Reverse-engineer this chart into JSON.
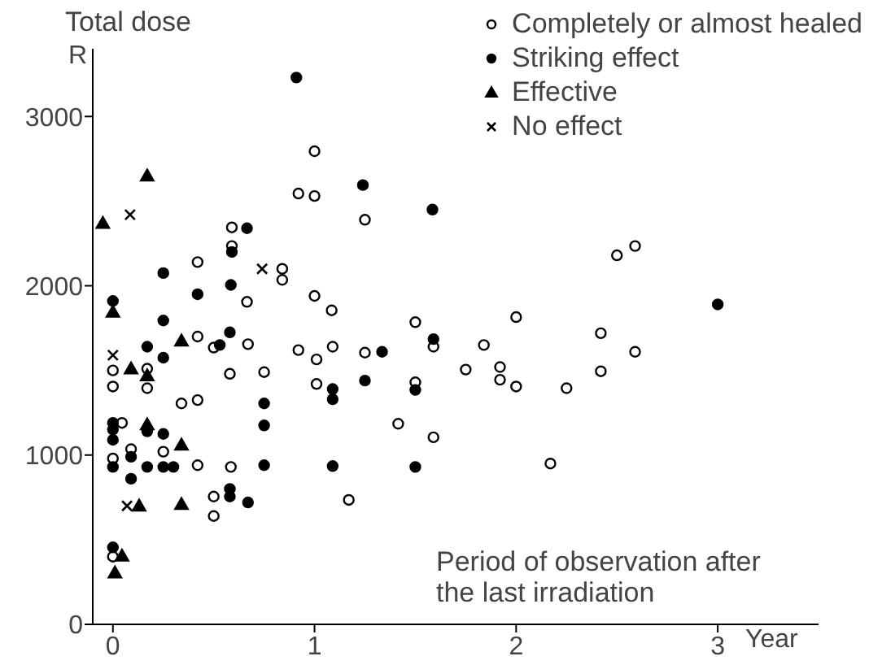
{
  "chart_data": {
    "type": "scatter",
    "ylabel": "Total dose",
    "xlabel": "Period of observation after the last irradiation",
    "annotations": [
      "R",
      "Year"
    ],
    "xlim": [
      -0.1,
      3.5
    ],
    "xticks": [
      0,
      1,
      2,
      3
    ],
    "ylim": [
      0,
      3400
    ],
    "yticks": [
      0,
      1000,
      2000,
      3000
    ],
    "legend": "top right",
    "series": [
      {
        "name": "Completely or almost healed",
        "color": "#ffffff",
        "marker": "circle",
        "x": [
          1.0,
          0.92,
          1.0,
          0.59,
          0.59,
          0.42,
          0.84,
          0.84,
          0.665,
          1.0,
          1.085,
          0.42,
          0.5,
          0.67,
          0.92,
          1.01,
          1.09,
          0.0,
          0.17,
          0.0,
          0.17,
          0.58,
          0.75,
          1.01,
          0.34,
          0.42,
          0.045,
          0.09,
          0.25,
          0.0,
          0.42,
          0.585,
          0.5,
          0.5,
          0.0,
          1.25,
          1.5,
          2.0,
          1.25,
          1.59,
          1.84,
          1.75,
          1.92,
          1.92,
          2.0,
          2.25,
          1.5,
          1.415,
          1.59,
          2.17,
          1.17,
          2.5,
          2.59,
          2.42,
          2.59,
          2.42
        ],
        "values": [
          2795,
          2545,
          2530,
          2345,
          2235,
          2140,
          2100,
          2035,
          1905,
          1940,
          1855,
          1700,
          1635,
          1655,
          1620,
          1565,
          1640,
          1500,
          1510,
          1405,
          1395,
          1480,
          1490,
          1420,
          1305,
          1325,
          1190,
          1035,
          1020,
          980,
          940,
          930,
          755,
          640,
          400,
          2390,
          1785,
          1815,
          1605,
          1640,
          1650,
          1505,
          1520,
          1445,
          1405,
          1395,
          1430,
          1185,
          1105,
          950,
          735,
          2180,
          2235,
          1720,
          1610,
          1495
        ]
      },
      {
        "name": "Striking effect",
        "color": "#000000",
        "marker": "circle",
        "x": [
          0.91,
          0.665,
          0.59,
          0.25,
          0.42,
          0.585,
          0.0,
          0.25,
          0.17,
          0.25,
          0.53,
          0.58,
          1.09,
          1.09,
          0.75,
          0.0,
          0.0,
          0.0,
          0.17,
          0.25,
          0.75,
          0.09,
          0.0,
          0.17,
          0.25,
          0.3,
          0.75,
          1.09,
          0.09,
          0.58,
          0.58,
          0.67,
          0.0,
          1.24,
          1.585,
          1.335,
          1.59,
          1.25,
          1.5,
          1.5,
          3.0
        ],
        "values": [
          3230,
          2340,
          2200,
          2075,
          1950,
          2005,
          1910,
          1795,
          1640,
          1575,
          1650,
          1725,
          1390,
          1330,
          1305,
          1190,
          1150,
          1090,
          1140,
          1125,
          1175,
          990,
          930,
          930,
          930,
          930,
          940,
          935,
          860,
          800,
          755,
          720,
          455,
          2595,
          2450,
          1610,
          1685,
          1440,
          1385,
          930,
          1890
        ]
      },
      {
        "name": "Effective",
        "color": "#000000",
        "marker": "triangle",
        "x": [
          0.17,
          -0.05,
          0.0,
          0.34,
          0.09,
          0.17,
          0.17,
          0.34,
          0.13,
          0.34,
          0.045,
          0.01
        ],
        "values": [
          2650,
          2370,
          1845,
          1675,
          1510,
          1470,
          1180,
          1060,
          700,
          710,
          405,
          305
        ]
      },
      {
        "name": "No effect",
        "color": "#000000",
        "marker": "cross",
        "x": [
          0.085,
          0.74,
          0.0,
          0.07
        ],
        "values": [
          2420,
          2100,
          1590,
          700
        ]
      }
    ]
  }
}
